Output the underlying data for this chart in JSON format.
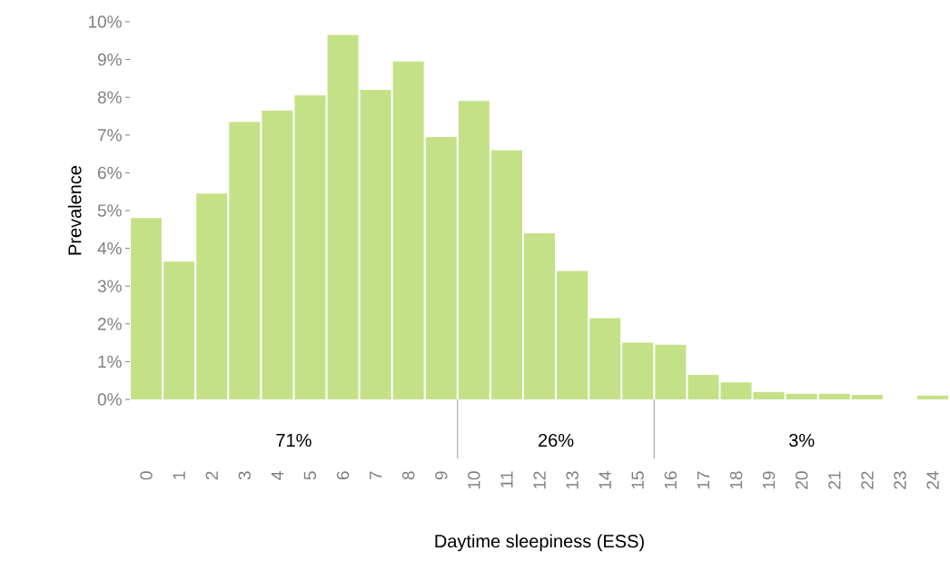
{
  "chart_data": {
    "type": "bar",
    "xlabel": "Daytime sleepiness (ESS)",
    "ylabel": "Prevalence",
    "categories": [
      "0",
      "1",
      "2",
      "3",
      "4",
      "5",
      "6",
      "7",
      "8",
      "9",
      "10",
      "11",
      "12",
      "13",
      "14",
      "15",
      "16",
      "17",
      "18",
      "19",
      "20",
      "21",
      "22",
      "23",
      "24"
    ],
    "values": [
      4.8,
      3.65,
      5.45,
      7.35,
      7.65,
      8.05,
      9.65,
      8.2,
      8.95,
      6.95,
      7.9,
      6.6,
      4.4,
      3.4,
      2.15,
      1.5,
      1.45,
      0.65,
      0.45,
      0.2,
      0.15,
      0.15,
      0.12,
      0,
      0.1
    ],
    "color": "#c5e187",
    "ylim": [
      0,
      10
    ],
    "yticks": [
      {
        "value": 0,
        "label": "0%"
      },
      {
        "value": 1,
        "label": "1%"
      },
      {
        "value": 2,
        "label": "2%"
      },
      {
        "value": 3,
        "label": "3%"
      },
      {
        "value": 4,
        "label": "4%"
      },
      {
        "value": 5,
        "label": "5%"
      },
      {
        "value": 6,
        "label": "6%"
      },
      {
        "value": 7,
        "label": "7%"
      },
      {
        "value": 8,
        "label": "8%"
      },
      {
        "value": 9,
        "label": "9%"
      },
      {
        "value": 10,
        "label": "10%"
      }
    ],
    "annotations": [
      "71%",
      "26%",
      "3%"
    ],
    "grid": false
  }
}
